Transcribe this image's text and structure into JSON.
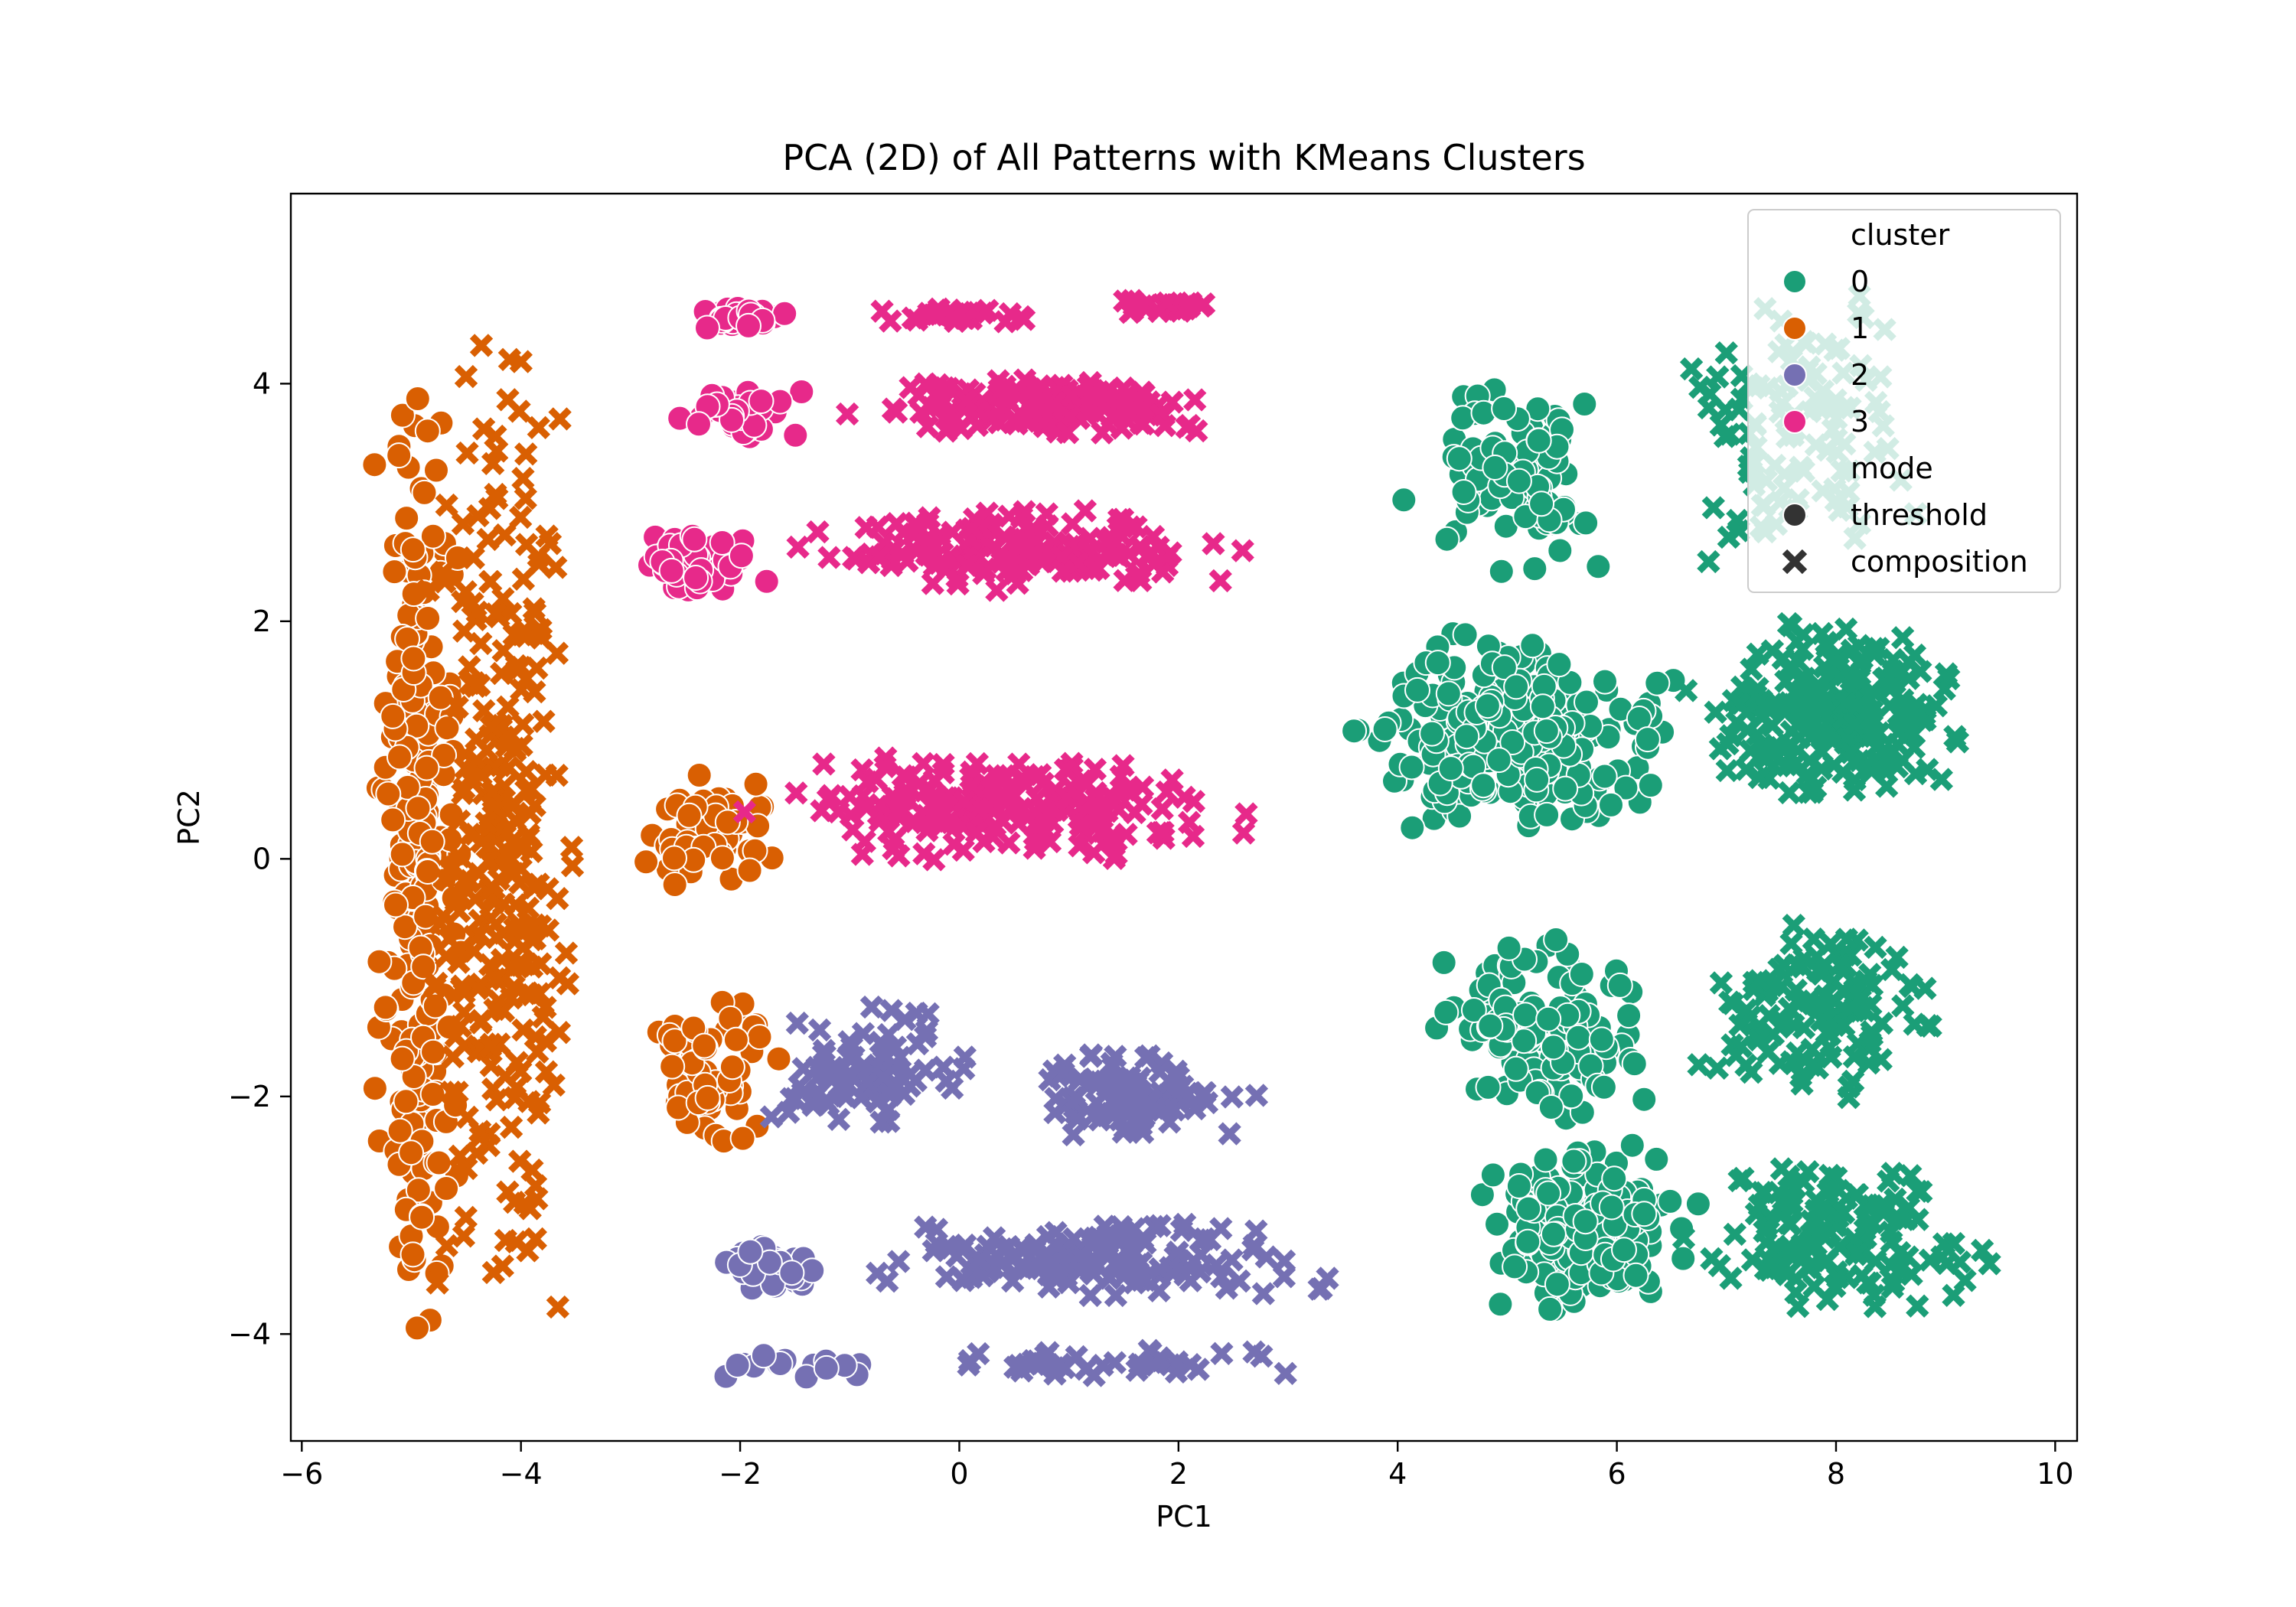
{
  "chart_data": {
    "type": "scatter",
    "title": "PCA (2D) of All Patterns with KMeans Clusters",
    "xlabel": "PC1",
    "ylabel": "PC2",
    "xlim": [
      -6.1,
      10.2
    ],
    "ylim": [
      -4.9,
      5.6
    ],
    "xticks": [
      -6,
      -4,
      -2,
      0,
      2,
      4,
      6,
      8,
      10
    ],
    "yticks": [
      -4,
      -2,
      0,
      2,
      4
    ],
    "xtick_labels": [
      "−6",
      "−4",
      "−2",
      "0",
      "2",
      "4",
      "6",
      "8",
      "10"
    ],
    "ytick_labels": [
      "−4",
      "−2",
      "0",
      "2",
      "4"
    ],
    "grid": false,
    "legend": {
      "placement": "top-right",
      "hue_title": "cluster",
      "style_title": "mode",
      "clusters": [
        {
          "label": "0",
          "color": "#1b9e77"
        },
        {
          "label": "1",
          "color": "#d95f02"
        },
        {
          "label": "2",
          "color": "#7570b3"
        },
        {
          "label": "3",
          "color": "#e7298a"
        }
      ],
      "modes": [
        {
          "label": "threshold",
          "marker": "circle"
        },
        {
          "label": "composition",
          "marker": "x"
        }
      ]
    },
    "groups": [
      {
        "cluster": "1",
        "mode": "threshold",
        "n": 260,
        "x": [
          -5.35,
          -4.55
        ],
        "y": [
          -4.25,
          4.5
        ]
      },
      {
        "cluster": "1",
        "mode": "composition",
        "n": 300,
        "x": [
          -4.9,
          -3.45
        ],
        "y": [
          -4.3,
          4.6
        ]
      },
      {
        "cluster": "1",
        "mode": "threshold",
        "n": 60,
        "x": [
          -2.9,
          -1.6
        ],
        "y": [
          -0.3,
          0.8
        ]
      },
      {
        "cluster": "1",
        "mode": "threshold",
        "n": 60,
        "x": [
          -2.9,
          -1.5
        ],
        "y": [
          -2.4,
          -1.1
        ]
      },
      {
        "cluster": "3",
        "mode": "threshold",
        "n": 30,
        "x": [
          -2.6,
          -1.4
        ],
        "y": [
          4.45,
          4.65
        ]
      },
      {
        "cluster": "3",
        "mode": "composition",
        "n": 30,
        "x": [
          -0.7,
          0.7
        ],
        "y": [
          4.5,
          4.65
        ]
      },
      {
        "cluster": "3",
        "mode": "composition",
        "n": 25,
        "x": [
          1.2,
          2.5
        ],
        "y": [
          4.55,
          4.75
        ]
      },
      {
        "cluster": "3",
        "mode": "threshold",
        "n": 40,
        "x": [
          -2.7,
          -1.3
        ],
        "y": [
          3.5,
          3.95
        ]
      },
      {
        "cluster": "3",
        "mode": "composition",
        "n": 150,
        "x": [
          -1.2,
          2.7
        ],
        "y": [
          3.55,
          4.05
        ]
      },
      {
        "cluster": "3",
        "mode": "threshold",
        "n": 60,
        "x": [
          -2.9,
          -1.7
        ],
        "y": [
          2.2,
          2.75
        ]
      },
      {
        "cluster": "3",
        "mode": "composition",
        "n": 160,
        "x": [
          -1.8,
          2.8
        ],
        "y": [
          2.25,
          2.95
        ]
      },
      {
        "cluster": "3",
        "mode": "composition",
        "n": 200,
        "x": [
          -1.9,
          2.9
        ],
        "y": [
          -0.05,
          0.9
        ]
      },
      {
        "cluster": "2",
        "mode": "composition",
        "n": 90,
        "x": [
          -1.9,
          0.2
        ],
        "y": [
          -2.35,
          -1.2
        ]
      },
      {
        "cluster": "2",
        "mode": "composition",
        "n": 100,
        "x": [
          0.4,
          2.7
        ],
        "y": [
          -2.35,
          -1.6
        ]
      },
      {
        "cluster": "2",
        "mode": "threshold",
        "n": 35,
        "x": [
          -2.3,
          -1.2
        ],
        "y": [
          -3.65,
          -3.2
        ]
      },
      {
        "cluster": "2",
        "mode": "composition",
        "n": 150,
        "x": [
          -1.0,
          3.4
        ],
        "y": [
          -3.7,
          -3.0
        ]
      },
      {
        "cluster": "2",
        "mode": "threshold",
        "n": 15,
        "x": [
          -2.2,
          -0.8
        ],
        "y": [
          -4.4,
          -4.15
        ]
      },
      {
        "cluster": "2",
        "mode": "composition",
        "n": 40,
        "x": [
          -0.5,
          3.3
        ],
        "y": [
          -4.4,
          -4.1
        ]
      },
      {
        "cluster": "0",
        "mode": "threshold",
        "n": 90,
        "x": [
          4.1,
          6.0
        ],
        "y": [
          2.4,
          4.1
        ]
      },
      {
        "cluster": "0",
        "mode": "composition",
        "n": 110,
        "x": [
          6.4,
          8.9
        ],
        "y": [
          2.4,
          4.8
        ]
      },
      {
        "cluster": "0",
        "mode": "threshold",
        "n": 250,
        "x": [
          3.5,
          6.6
        ],
        "y": [
          0.2,
          2.0
        ]
      },
      {
        "cluster": "0",
        "mode": "composition",
        "n": 230,
        "x": [
          6.6,
          9.5
        ],
        "y": [
          0.4,
          2.0
        ]
      },
      {
        "cluster": "0",
        "mode": "threshold",
        "n": 130,
        "x": [
          4.2,
          6.5
        ],
        "y": [
          -2.2,
          -0.6
        ]
      },
      {
        "cluster": "0",
        "mode": "composition",
        "n": 120,
        "x": [
          6.7,
          9.1
        ],
        "y": [
          -2.1,
          -0.5
        ]
      },
      {
        "cluster": "0",
        "mode": "threshold",
        "n": 180,
        "x": [
          4.6,
          6.8
        ],
        "y": [
          -3.85,
          -2.4
        ]
      },
      {
        "cluster": "0",
        "mode": "composition",
        "n": 140,
        "x": [
          6.6,
          9.4
        ],
        "y": [
          -3.9,
          -2.5
        ]
      }
    ]
  }
}
